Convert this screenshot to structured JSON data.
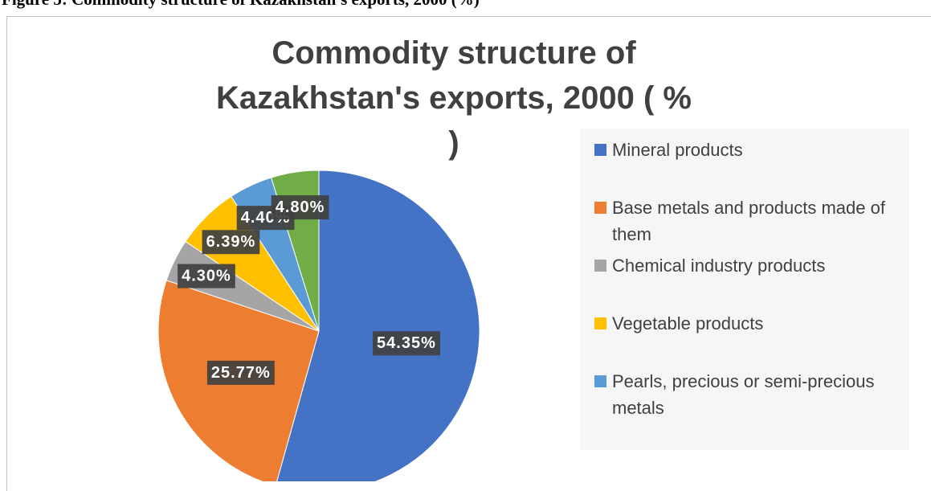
{
  "caption": "Figure 5: Commodity structure of Kazakhstan's exports, 2000 (%)",
  "chart_data": {
    "type": "pie",
    "title": "Commodity structure of Kazakhstan's exports, 2000 ( % )",
    "categories": [
      "Mineral products",
      "Base metals and products made of them",
      "Chemical industry products",
      "Vegetable products",
      "Pearls, precious or semi-precious metals",
      null
    ],
    "values": [
      54.35,
      25.77,
      4.3,
      6.39,
      4.4,
      4.8
    ],
    "value_labels": [
      "54.35%",
      "25.77%",
      "4.30%",
      "6.39%",
      "4.40%",
      "4.80%"
    ],
    "colors": [
      "#4472c4",
      "#ed7d31",
      "#a5a5a5",
      "#ffc000",
      "#5b9bd5",
      "#70ad47"
    ],
    "legend": "right"
  }
}
